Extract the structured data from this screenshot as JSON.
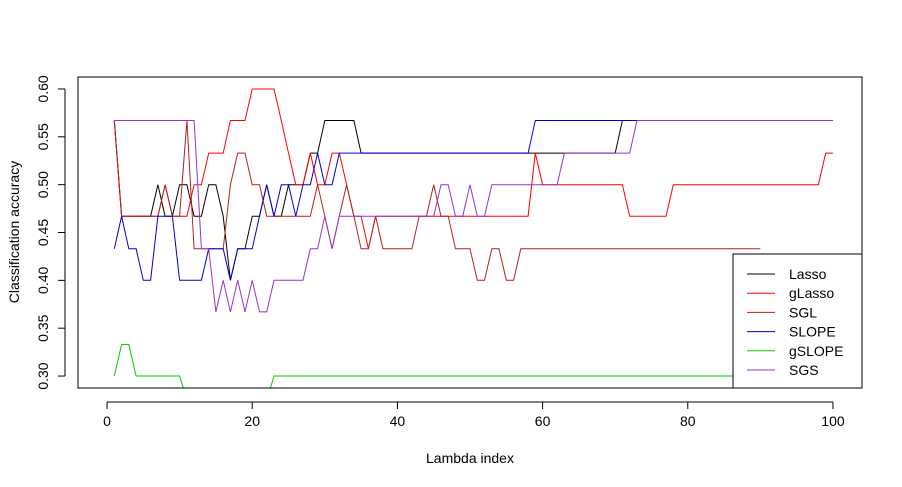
{
  "chart_data": {
    "type": "line",
    "title": "",
    "xlabel": "Lambda index",
    "ylabel": "Classification accuracy",
    "xlim": [
      -4,
      104
    ],
    "ylim": [
      0.2875,
      0.6125
    ],
    "xticks": [
      0,
      20,
      40,
      60,
      80,
      100
    ],
    "yticks": [
      0.3,
      0.35,
      0.4,
      0.45,
      0.5,
      0.55,
      0.6
    ],
    "ytick_labels": [
      "0.30",
      "0.35",
      "0.40",
      "0.45",
      "0.50",
      "0.55",
      "0.60"
    ],
    "grid": false,
    "legend_position": "bottom-right",
    "series": [
      {
        "name": "Lasso",
        "color": "#000000",
        "points": [
          [
            1,
            0.567
          ],
          [
            2,
            0.467
          ],
          [
            6,
            0.467
          ],
          [
            7,
            0.5
          ],
          [
            8,
            0.467
          ],
          [
            9,
            0.467
          ],
          [
            10,
            0.5
          ],
          [
            11,
            0.5
          ],
          [
            12,
            0.467
          ],
          [
            13,
            0.467
          ],
          [
            14,
            0.5
          ],
          [
            15,
            0.5
          ],
          [
            16,
            0.467
          ],
          [
            17,
            0.4
          ],
          [
            18,
            0.433
          ],
          [
            19,
            0.433
          ],
          [
            20,
            0.467
          ],
          [
            21,
            0.467
          ],
          [
            22,
            0.5
          ],
          [
            23,
            0.467
          ],
          [
            24,
            0.467
          ],
          [
            25,
            0.5
          ],
          [
            26,
            0.5
          ],
          [
            27,
            0.5
          ],
          [
            28,
            0.533
          ],
          [
            29,
            0.533
          ],
          [
            30,
            0.567
          ],
          [
            34,
            0.567
          ],
          [
            35,
            0.533
          ],
          [
            70,
            0.533
          ],
          [
            71,
            0.567
          ],
          [
            100,
            0.567
          ]
        ]
      },
      {
        "name": "gLasso",
        "color": "#ff0000",
        "points": [
          [
            1,
            0.567
          ],
          [
            2,
            0.467
          ],
          [
            7,
            0.467
          ],
          [
            8,
            0.5
          ],
          [
            9,
            0.467
          ],
          [
            10,
            0.467
          ],
          [
            11,
            0.467
          ],
          [
            12,
            0.5
          ],
          [
            13,
            0.5
          ],
          [
            14,
            0.533
          ],
          [
            16,
            0.533
          ],
          [
            17,
            0.567
          ],
          [
            19,
            0.567
          ],
          [
            20,
            0.6
          ],
          [
            23,
            0.6
          ],
          [
            24,
            0.567
          ],
          [
            25,
            0.533
          ],
          [
            26,
            0.5
          ],
          [
            27,
            0.5
          ],
          [
            28,
            0.533
          ],
          [
            29,
            0.5
          ],
          [
            30,
            0.5
          ],
          [
            31,
            0.533
          ],
          [
            32,
            0.533
          ],
          [
            33,
            0.5
          ],
          [
            34,
            0.467
          ],
          [
            35,
            0.467
          ],
          [
            36,
            0.433
          ],
          [
            37,
            0.467
          ],
          [
            58,
            0.467
          ],
          [
            59,
            0.533
          ],
          [
            60,
            0.5
          ],
          [
            71,
            0.5
          ],
          [
            72,
            0.467
          ],
          [
            77,
            0.467
          ],
          [
            78,
            0.5
          ],
          [
            98,
            0.5
          ],
          [
            99,
            0.533
          ],
          [
            100,
            0.533
          ]
        ]
      },
      {
        "name": "SGL",
        "color": "#b22222",
        "points": [
          [
            1,
            0.567
          ],
          [
            2,
            0.467
          ],
          [
            7,
            0.467
          ],
          [
            8,
            0.5
          ],
          [
            9,
            0.467
          ],
          [
            10,
            0.467
          ],
          [
            11,
            0.567
          ],
          [
            12,
            0.433
          ],
          [
            16,
            0.433
          ],
          [
            17,
            0.5
          ],
          [
            18,
            0.533
          ],
          [
            19,
            0.533
          ],
          [
            20,
            0.5
          ],
          [
            21,
            0.5
          ],
          [
            22,
            0.467
          ],
          [
            28,
            0.467
          ],
          [
            29,
            0.5
          ],
          [
            30,
            0.467
          ],
          [
            31,
            0.433
          ],
          [
            32,
            0.467
          ],
          [
            33,
            0.5
          ],
          [
            34,
            0.467
          ],
          [
            35,
            0.433
          ],
          [
            36,
            0.433
          ],
          [
            37,
            0.467
          ],
          [
            38,
            0.433
          ],
          [
            42,
            0.433
          ],
          [
            43,
            0.467
          ],
          [
            44,
            0.467
          ],
          [
            45,
            0.5
          ],
          [
            46,
            0.467
          ],
          [
            47,
            0.467
          ],
          [
            48,
            0.433
          ],
          [
            50,
            0.433
          ],
          [
            51,
            0.4
          ],
          [
            52,
            0.4
          ],
          [
            53,
            0.433
          ],
          [
            54,
            0.433
          ],
          [
            55,
            0.4
          ],
          [
            56,
            0.4
          ],
          [
            57,
            0.433
          ],
          [
            90,
            0.433
          ]
        ]
      },
      {
        "name": "SLOPE",
        "color": "#0000cd",
        "points": [
          [
            1,
            0.433
          ],
          [
            2,
            0.467
          ],
          [
            3,
            0.433
          ],
          [
            4,
            0.433
          ],
          [
            5,
            0.4
          ],
          [
            6,
            0.4
          ],
          [
            7,
            0.467
          ],
          [
            8,
            0.467
          ],
          [
            9,
            0.467
          ],
          [
            10,
            0.4
          ],
          [
            13,
            0.4
          ],
          [
            14,
            0.433
          ],
          [
            16,
            0.433
          ],
          [
            17,
            0.4
          ],
          [
            18,
            0.433
          ],
          [
            20,
            0.433
          ],
          [
            21,
            0.467
          ],
          [
            22,
            0.5
          ],
          [
            23,
            0.467
          ],
          [
            24,
            0.5
          ],
          [
            25,
            0.5
          ],
          [
            26,
            0.467
          ],
          [
            27,
            0.5
          ],
          [
            28,
            0.5
          ],
          [
            29,
            0.533
          ],
          [
            30,
            0.5
          ],
          [
            31,
            0.5
          ],
          [
            32,
            0.533
          ],
          [
            58,
            0.533
          ],
          [
            59,
            0.567
          ],
          [
            100,
            0.567
          ]
        ]
      },
      {
        "name": "gSLOPE",
        "color": "#00cc00",
        "points": [
          [
            1,
            0.3
          ],
          [
            2,
            0.333
          ],
          [
            3,
            0.333
          ],
          [
            4,
            0.3
          ],
          [
            10,
            0.3
          ],
          [
            10.5,
            0.2875
          ],
          [
            22.5,
            0.2875
          ],
          [
            23,
            0.3
          ],
          [
            90,
            0.3
          ]
        ]
      },
      {
        "name": "SGS",
        "color": "#9932cc",
        "points": [
          [
            1,
            0.567
          ],
          [
            12,
            0.567
          ],
          [
            13,
            0.433
          ],
          [
            14,
            0.433
          ],
          [
            15,
            0.367
          ],
          [
            16,
            0.4
          ],
          [
            17,
            0.367
          ],
          [
            18,
            0.4
          ],
          [
            19,
            0.367
          ],
          [
            20,
            0.4
          ],
          [
            21,
            0.367
          ],
          [
            22,
            0.367
          ],
          [
            23,
            0.4
          ],
          [
            27,
            0.4
          ],
          [
            28,
            0.433
          ],
          [
            29,
            0.433
          ],
          [
            30,
            0.467
          ],
          [
            31,
            0.433
          ],
          [
            32,
            0.467
          ],
          [
            45,
            0.467
          ],
          [
            46,
            0.5
          ],
          [
            47,
            0.5
          ],
          [
            48,
            0.467
          ],
          [
            49,
            0.467
          ],
          [
            50,
            0.5
          ],
          [
            51,
            0.467
          ],
          [
            52,
            0.467
          ],
          [
            53,
            0.5
          ],
          [
            62,
            0.5
          ],
          [
            63,
            0.533
          ],
          [
            72,
            0.533
          ],
          [
            73,
            0.567
          ],
          [
            100,
            0.567
          ]
        ]
      }
    ]
  }
}
